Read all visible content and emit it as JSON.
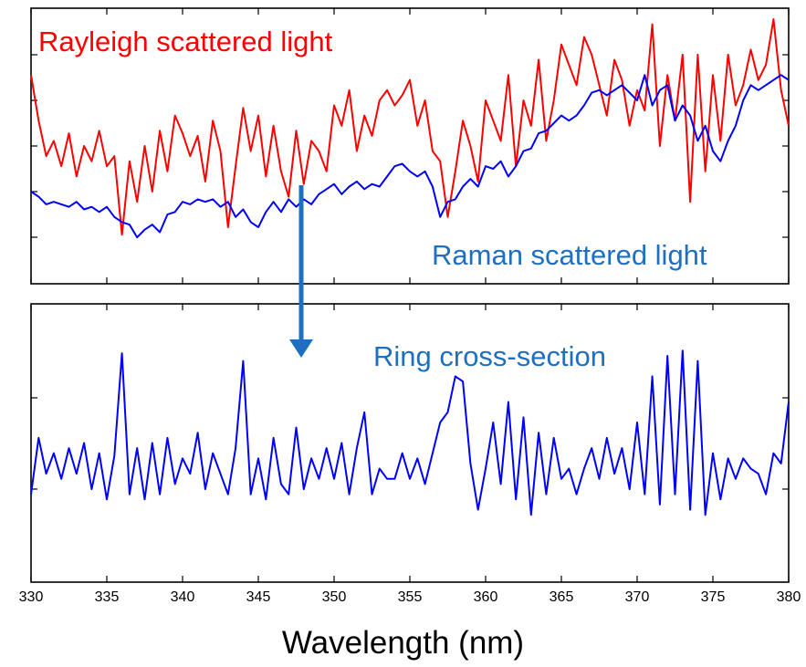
{
  "chart_data": [
    {
      "type": "line",
      "panel": "top",
      "xlim": [
        330,
        380
      ],
      "x_tick_labels": [],
      "annotations": [
        "Rayleigh scattered light",
        "Raman scattered light"
      ],
      "series": [
        {
          "name": "Rayleigh scattered light",
          "color": "#ff0000",
          "x": [
            330,
            330.5,
            331,
            331.5,
            332,
            332.5,
            333,
            333.5,
            334,
            334.5,
            335,
            335.5,
            336,
            336.5,
            337,
            337.5,
            338,
            338.5,
            339,
            339.5,
            340,
            340.5,
            341,
            341.5,
            342,
            342.5,
            343,
            343.5,
            344,
            344.5,
            345,
            345.5,
            346,
            346.5,
            347,
            347.5,
            348,
            348.5,
            349,
            349.5,
            350,
            350.5,
            351,
            351.5,
            352,
            352.5,
            353,
            353.5,
            354,
            354.5,
            355,
            355.5,
            356,
            356.5,
            357,
            357.5,
            358,
            358.5,
            359,
            359.5,
            360,
            360.5,
            361,
            361.5,
            362,
            362.5,
            363,
            363.5,
            364,
            364.5,
            365,
            365.5,
            366,
            366.5,
            367,
            367.5,
            368,
            368.5,
            369,
            369.5,
            370,
            370.5,
            371,
            371.5,
            372,
            372.5,
            373,
            373.5,
            374,
            374.5,
            375,
            375.5,
            376,
            376.5,
            377,
            377.5,
            378,
            378.5,
            379,
            379.5,
            380
          ],
          "y": [
            0.78,
            0.6,
            0.46,
            0.52,
            0.42,
            0.55,
            0.38,
            0.5,
            0.44,
            0.56,
            0.42,
            0.46,
            0.15,
            0.44,
            0.28,
            0.5,
            0.32,
            0.56,
            0.4,
            0.62,
            0.55,
            0.46,
            0.54,
            0.36,
            0.6,
            0.48,
            0.18,
            0.42,
            0.65,
            0.48,
            0.62,
            0.38,
            0.58,
            0.4,
            0.3,
            0.56,
            0.35,
            0.52,
            0.48,
            0.4,
            0.66,
            0.58,
            0.72,
            0.48,
            0.62,
            0.54,
            0.68,
            0.72,
            0.66,
            0.7,
            0.76,
            0.58,
            0.68,
            0.48,
            0.44,
            0.22,
            0.4,
            0.6,
            0.5,
            0.36,
            0.68,
            0.6,
            0.52,
            0.78,
            0.42,
            0.68,
            0.58,
            0.84,
            0.52,
            0.68,
            0.9,
            0.82,
            0.74,
            0.93,
            0.86,
            0.74,
            0.62,
            0.84,
            0.76,
            0.58,
            0.72,
            0.64,
            0.98,
            0.5,
            0.78,
            0.6,
            0.86,
            0.28,
            0.86,
            0.4,
            0.78,
            0.52,
            0.86,
            0.66,
            0.74,
            0.88,
            0.76,
            0.82,
            1.0,
            0.72,
            0.58
          ]
        },
        {
          "name": "Raman scattered light",
          "color": "#0000ff",
          "x": [
            330,
            330.5,
            331,
            331.5,
            332,
            332.5,
            333,
            333.5,
            334,
            334.5,
            335,
            335.5,
            336,
            336.5,
            337,
            337.5,
            338,
            338.5,
            339,
            339.5,
            340,
            340.5,
            341,
            341.5,
            342,
            342.5,
            343,
            343.5,
            344,
            344.5,
            345,
            345.5,
            346,
            346.5,
            347,
            347.5,
            348,
            348.5,
            349,
            349.5,
            350,
            350.5,
            351,
            351.5,
            352,
            352.5,
            353,
            353.5,
            354,
            354.5,
            355,
            355.5,
            356,
            356.5,
            357,
            357.5,
            358,
            358.5,
            359,
            359.5,
            360,
            360.5,
            361,
            361.5,
            362,
            362.5,
            363,
            363.5,
            364,
            364.5,
            365,
            365.5,
            366,
            366.5,
            367,
            367.5,
            368,
            368.5,
            369,
            369.5,
            370,
            370.5,
            371,
            371.5,
            372,
            372.5,
            373,
            373.5,
            374,
            374.5,
            375,
            375.5,
            376,
            376.5,
            377,
            377.5,
            378,
            378.5,
            379,
            379.5,
            380
          ],
          "y": [
            0.32,
            0.3,
            0.27,
            0.28,
            0.27,
            0.26,
            0.28,
            0.25,
            0.26,
            0.24,
            0.26,
            0.22,
            0.2,
            0.19,
            0.14,
            0.17,
            0.19,
            0.16,
            0.23,
            0.24,
            0.28,
            0.27,
            0.29,
            0.28,
            0.29,
            0.26,
            0.28,
            0.22,
            0.25,
            0.2,
            0.18,
            0.24,
            0.28,
            0.24,
            0.29,
            0.26,
            0.29,
            0.27,
            0.31,
            0.33,
            0.35,
            0.31,
            0.34,
            0.36,
            0.33,
            0.35,
            0.34,
            0.38,
            0.42,
            0.43,
            0.4,
            0.38,
            0.4,
            0.34,
            0.22,
            0.28,
            0.29,
            0.34,
            0.37,
            0.34,
            0.42,
            0.41,
            0.44,
            0.38,
            0.42,
            0.48,
            0.49,
            0.55,
            0.56,
            0.59,
            0.62,
            0.6,
            0.62,
            0.66,
            0.71,
            0.72,
            0.7,
            0.72,
            0.74,
            0.71,
            0.68,
            0.78,
            0.66,
            0.72,
            0.74,
            0.6,
            0.66,
            0.62,
            0.52,
            0.58,
            0.48,
            0.44,
            0.52,
            0.58,
            0.68,
            0.74,
            0.72,
            0.74,
            0.76,
            0.78,
            0.76
          ]
        }
      ]
    },
    {
      "type": "line",
      "panel": "bottom",
      "xlim": [
        330,
        380
      ],
      "xlabel": "Wavelength (nm)",
      "x_tick_labels": [
        "330",
        "335",
        "340",
        "345",
        "350",
        "355",
        "360",
        "365",
        "370",
        "375",
        "380"
      ],
      "annotations": [
        "Ring cross-section"
      ],
      "series": [
        {
          "name": "Ring cross-section",
          "color": "#0000ff",
          "x": [
            330,
            330.5,
            331,
            331.5,
            332,
            332.5,
            333,
            333.5,
            334,
            334.5,
            335,
            335.5,
            336,
            336.5,
            337,
            337.5,
            338,
            338.5,
            339,
            339.5,
            340,
            340.5,
            341,
            341.5,
            342,
            342.5,
            343,
            343.5,
            344,
            344.5,
            345,
            345.5,
            346,
            346.5,
            347,
            347.5,
            348,
            348.5,
            349,
            349.5,
            350,
            350.5,
            351,
            351.5,
            352,
            352.5,
            353,
            353.5,
            354,
            354.5,
            355,
            355.5,
            356,
            356.5,
            357,
            357.5,
            358,
            358.5,
            359,
            359.5,
            360,
            360.5,
            361,
            361.5,
            362,
            362.5,
            363,
            363.5,
            364,
            364.5,
            365,
            365.5,
            366,
            366.5,
            367,
            367.5,
            368,
            368.5,
            369,
            369.5,
            370,
            370.5,
            371,
            371.5,
            372,
            372.5,
            373,
            373.5,
            374,
            374.5,
            375,
            375.5,
            376,
            376.5,
            377,
            377.5,
            378,
            378.5,
            379,
            379.5,
            380
          ],
          "y": [
            0.3,
            0.52,
            0.38,
            0.46,
            0.36,
            0.48,
            0.38,
            0.5,
            0.32,
            0.46,
            0.28,
            0.45,
            0.85,
            0.3,
            0.48,
            0.28,
            0.5,
            0.3,
            0.52,
            0.34,
            0.44,
            0.38,
            0.54,
            0.32,
            0.46,
            0.38,
            0.3,
            0.48,
            0.82,
            0.3,
            0.44,
            0.28,
            0.52,
            0.34,
            0.3,
            0.56,
            0.32,
            0.44,
            0.36,
            0.48,
            0.36,
            0.5,
            0.3,
            0.48,
            0.62,
            0.3,
            0.4,
            0.36,
            0.36,
            0.46,
            0.36,
            0.44,
            0.34,
            0.46,
            0.58,
            0.62,
            0.76,
            0.74,
            0.42,
            0.24,
            0.4,
            0.58,
            0.34,
            0.66,
            0.28,
            0.6,
            0.22,
            0.54,
            0.3,
            0.52,
            0.36,
            0.4,
            0.3,
            0.4,
            0.48,
            0.36,
            0.52,
            0.38,
            0.48,
            0.32,
            0.58,
            0.3,
            0.76,
            0.26,
            0.84,
            0.3,
            0.86,
            0.24,
            0.82,
            0.22,
            0.46,
            0.28,
            0.44,
            0.36,
            0.44,
            0.4,
            0.38,
            0.3,
            0.46,
            0.42,
            0.66
          ]
        }
      ]
    }
  ]
}
